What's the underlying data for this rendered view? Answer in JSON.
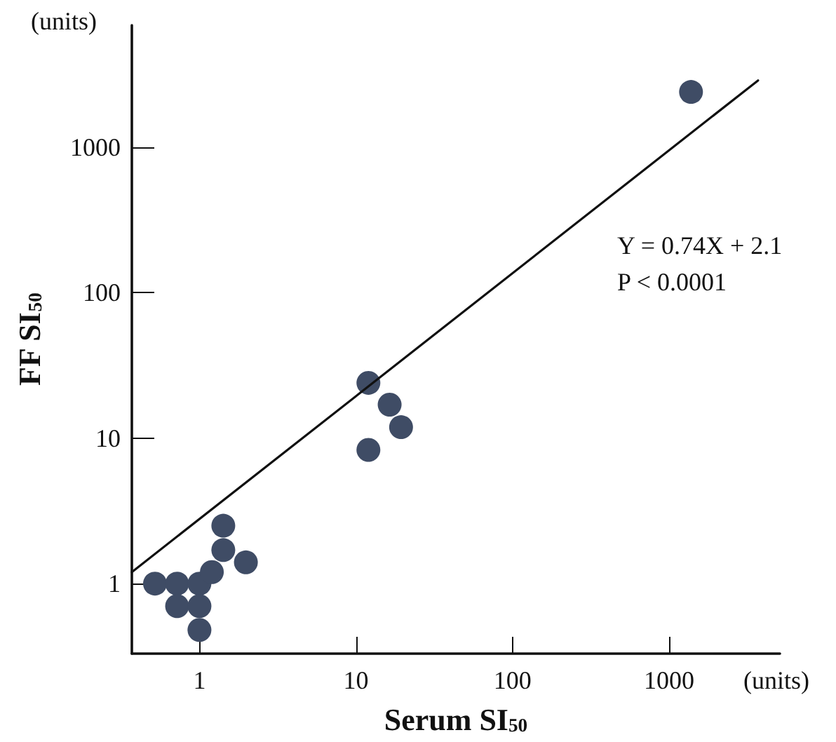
{
  "chart_data": {
    "type": "scatter",
    "xlabel": "Serum SI$_{50}$",
    "ylabel": "FF SI$_{50}$",
    "annotations": [
      "(units)",
      "(units)",
      "Y = 0.74X + 2.1",
      "P < 0.0001"
    ],
    "log": "xy",
    "grid": false,
    "marker": "circle",
    "xlim": [
      0.37,
      5100
    ],
    "xticks": [
      1,
      10,
      100,
      1000
    ],
    "ylim": [
      0.33,
      6900
    ],
    "yticks": [
      1,
      10,
      100,
      1000
    ],
    "series": [
      {
        "color": "#3f4c65",
        "x": [
          0.52,
          0.72,
          1,
          0.72,
          1,
          1,
          1.2,
          1.42,
          1.42,
          1.98,
          12,
          16.4,
          19.4,
          12,
          1380
        ],
        "values": [
          1,
          1,
          1,
          0.7,
          0.7,
          0.48,
          1.2,
          1.7,
          2.5,
          1.4,
          24,
          17,
          11.9,
          8.3,
          2400
        ]
      },
      {
        "type": "line",
        "color": "#111111",
        "marker": "none",
        "line_style": "solid",
        "x": [
          0.37,
          3700
        ],
        "values": [
          1.2,
          2880
        ]
      }
    ]
  }
}
